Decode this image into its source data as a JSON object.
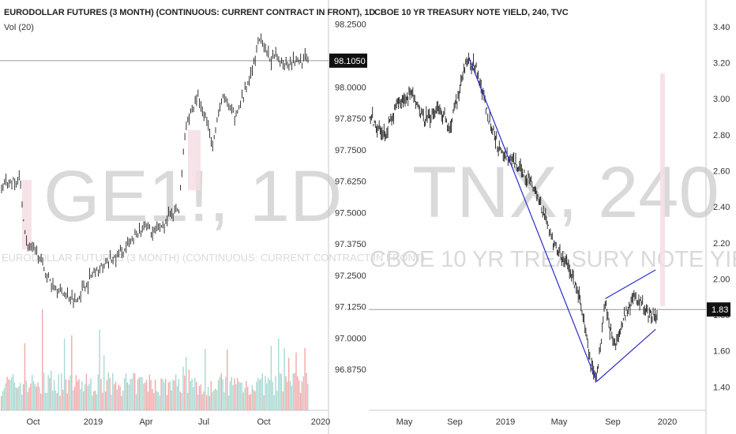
{
  "left_chart": {
    "title": "EURODOLLAR FUTURES (3 MONTH) (CONTINUOUS: CURRENT CONTRACT IN FRONT), 1D",
    "indicator": "Vol (20)",
    "watermark_symbol": "GE1!, 1D",
    "watermark_desc": "EURODOLLAR FUTURES (3 MONTH) (CONTINUOUS: CURRENT CONTRACT IN FRONT)",
    "y_ticks": [
      "98.2500",
      "98.0000",
      "97.8750",
      "97.7500",
      "97.6250",
      "97.5000",
      "97.3750",
      "97.2500",
      "97.1250",
      "97.0000",
      "96.8750"
    ],
    "x_ticks": [
      "Oct",
      "2019",
      "Apr",
      "Jul",
      "Oct",
      "2020"
    ],
    "last_price": "98.1050"
  },
  "right_chart": {
    "title": "CBOE 10 YR TREASURY NOTE YIELD, 240, TVC",
    "watermark_symbol": "TNX, 240",
    "watermark_desc": "CBOE 10 YR TREASURY NOTE YIELD",
    "y_ticks": [
      "3.40",
      "3.20",
      "3.00",
      "2.80",
      "2.60",
      "2.40",
      "2.20",
      "2.00",
      "1.80",
      "1.60",
      "1.40"
    ],
    "x_ticks": [
      "May",
      "Sep",
      "2019",
      "May",
      "Sep",
      "2020"
    ],
    "last_price": "1.83"
  },
  "chart_data": [
    {
      "type": "candlestick",
      "title": "EURODOLLAR FUTURES (3 MONTH) (CONTINUOUS: CURRENT CONTRACT IN FRONT), 1D",
      "x_ticks": [
        "Oct",
        "2019",
        "Apr",
        "Jul",
        "Oct",
        "2020"
      ],
      "ylim": [
        96.8,
        98.29
      ],
      "last_price": 98.105,
      "close_path": [
        {
          "t": 0.0,
          "v": 97.6
        },
        {
          "t": 0.03,
          "v": 97.62
        },
        {
          "t": 0.06,
          "v": 97.63
        },
        {
          "t": 0.08,
          "v": 97.38
        },
        {
          "t": 0.12,
          "v": 97.33
        },
        {
          "t": 0.16,
          "v": 97.22
        },
        {
          "t": 0.2,
          "v": 97.18
        },
        {
          "t": 0.24,
          "v": 97.15
        },
        {
          "t": 0.3,
          "v": 97.26
        },
        {
          "t": 0.36,
          "v": 97.31
        },
        {
          "t": 0.42,
          "v": 97.37
        },
        {
          "t": 0.46,
          "v": 97.45
        },
        {
          "t": 0.5,
          "v": 97.42
        },
        {
          "t": 0.55,
          "v": 97.48
        },
        {
          "t": 0.58,
          "v": 97.52
        },
        {
          "t": 0.6,
          "v": 97.85
        },
        {
          "t": 0.64,
          "v": 97.96
        },
        {
          "t": 0.67,
          "v": 97.86
        },
        {
          "t": 0.69,
          "v": 97.78
        },
        {
          "t": 0.72,
          "v": 97.96
        },
        {
          "t": 0.76,
          "v": 97.88
        },
        {
          "t": 0.8,
          "v": 98.0
        },
        {
          "t": 0.82,
          "v": 98.08
        },
        {
          "t": 0.84,
          "v": 98.2
        },
        {
          "t": 0.87,
          "v": 98.12
        },
        {
          "t": 0.92,
          "v": 98.1
        },
        {
          "t": 0.96,
          "v": 98.11
        },
        {
          "t": 1.0,
          "v": 98.105
        }
      ]
    },
    {
      "type": "candlestick",
      "title": "CBOE 10 YR TREASURY NOTE YIELD, 240, TVC",
      "x_ticks": [
        "May",
        "Sep",
        "2019",
        "May",
        "Sep",
        "2020"
      ],
      "ylim": [
        1.27,
        3.47
      ],
      "last_price": 1.83,
      "close_path": [
        {
          "t": 0.0,
          "v": 2.9
        },
        {
          "t": 0.05,
          "v": 2.8
        },
        {
          "t": 0.1,
          "v": 2.97
        },
        {
          "t": 0.14,
          "v": 3.03
        },
        {
          "t": 0.19,
          "v": 2.88
        },
        {
          "t": 0.24,
          "v": 2.95
        },
        {
          "t": 0.28,
          "v": 2.84
        },
        {
          "t": 0.31,
          "v": 3.02
        },
        {
          "t": 0.34,
          "v": 3.22
        },
        {
          "t": 0.37,
          "v": 3.17
        },
        {
          "t": 0.41,
          "v": 2.92
        },
        {
          "t": 0.45,
          "v": 2.72
        },
        {
          "t": 0.51,
          "v": 2.63
        },
        {
          "t": 0.56,
          "v": 2.55
        },
        {
          "t": 0.6,
          "v": 2.4
        },
        {
          "t": 0.64,
          "v": 2.2
        },
        {
          "t": 0.69,
          "v": 2.07
        },
        {
          "t": 0.73,
          "v": 1.9
        },
        {
          "t": 0.77,
          "v": 1.52
        },
        {
          "t": 0.79,
          "v": 1.45
        },
        {
          "t": 0.82,
          "v": 1.88
        },
        {
          "t": 0.85,
          "v": 1.62
        },
        {
          "t": 0.88,
          "v": 1.78
        },
        {
          "t": 0.92,
          "v": 1.9
        },
        {
          "t": 0.95,
          "v": 1.85
        },
        {
          "t": 0.98,
          "v": 1.78
        },
        {
          "t": 1.0,
          "v": 1.83
        }
      ],
      "trendlines": [
        {
          "from": {
            "t": 0.345,
            "v": 3.23
          },
          "to": {
            "t": 0.79,
            "v": 1.43
          }
        },
        {
          "from": {
            "t": 0.79,
            "v": 1.43
          },
          "to": {
            "t": 0.995,
            "v": 1.72
          }
        },
        {
          "from": {
            "t": 0.82,
            "v": 1.89
          },
          "to": {
            "t": 0.995,
            "v": 2.05
          }
        }
      ]
    }
  ]
}
